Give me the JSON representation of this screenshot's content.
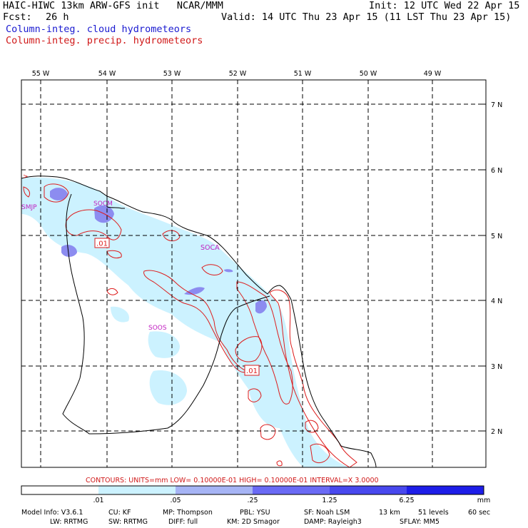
{
  "header": {
    "title": "HAIC-HIWC 13km ARW-GFS init   NCAR/MMM",
    "fcst_label": "Fcst:",
    "fcst_value": "26 h",
    "init": "Init: 12 UTC Wed 22 Apr 15",
    "valid": "Valid: 14 UTC Thu 23 Apr 15 (11 LST Thu 23 Apr 15)",
    "legend_cloud": "Column-integ. cloud hydrometeors",
    "legend_precip": "Column-integ. precip. hydrometeors"
  },
  "map": {
    "lon_labels": [
      "55 W",
      "54 W",
      "53 W",
      "52 W",
      "51 W",
      "50 W",
      "49 W"
    ],
    "lat_labels": [
      "7 N",
      "6 N",
      "5 N",
      "4 N",
      "3 N",
      "2 N"
    ],
    "stations": [
      "SMJP",
      "SOCM",
      "SOCA",
      "SOOS"
    ],
    "contour_labels": [
      ".01",
      ".01"
    ],
    "arrow_label": ">"
  },
  "contours_line": "CONTOURS:  UNITS=mm  LOW= 0.10000E-01  HIGH= 0.10000E-01  INTERVAL=X  3.0000",
  "colorbar": {
    "ticks": [
      ".01",
      ".05",
      ".25",
      "1.25",
      "6.25"
    ],
    "unit": "mm",
    "colors": [
      "#ffffff",
      "#ccf2ff",
      "#a6b4f5",
      "#6a6af5",
      "#1d1de8"
    ]
  },
  "footer": {
    "line1": [
      "Model Info: V3.6.1",
      "CU: KF",
      "MP: Thompson",
      "PBL: YSU",
      "SF: Noah LSM",
      "13 km",
      "51 levels",
      "60 sec"
    ],
    "line2": [
      "LW: RRTMG",
      "SW: RRTMG",
      "DIFF: full",
      "KM: 2D Smagor",
      "DAMP: Rayleigh3",
      "SFLAY: MM5"
    ]
  },
  "colors": {
    "grid": "#000000",
    "cloud_light": "#ccf2ff",
    "cloud_mid": "#8c8cf0",
    "precip_contour": "#dd1c1c",
    "station": "#c020c0"
  }
}
